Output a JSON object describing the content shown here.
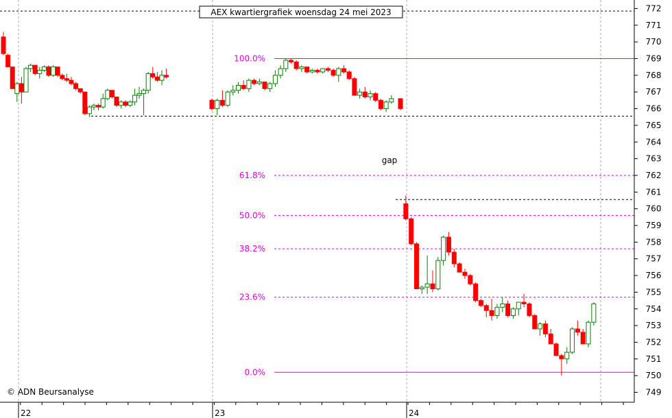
{
  "chart_data": {
    "type": "candlestick",
    "title": "AEX kwartiergrafiek woensdag 24 mei 2023",
    "copyright": "© ADN Beursanalyse",
    "annotation_gap": "gap",
    "y_range": [
      748.5,
      772.3
    ],
    "y_ticks": [
      749,
      750,
      751,
      752,
      753,
      754,
      755,
      756,
      757,
      758,
      759,
      760,
      761,
      762,
      763,
      764,
      765,
      766,
      767,
      768,
      769,
      770,
      771,
      772
    ],
    "x_labels": [
      "22",
      "23",
      "24"
    ],
    "colors": {
      "up": "#008000",
      "down": "#ff0000",
      "fib": "#e000e0",
      "grid": "#aaaaaa"
    },
    "fib_levels": [
      {
        "label": "100.0%",
        "value": 769.0,
        "style": "solid"
      },
      {
        "label": "61.8%",
        "value": 762.0,
        "style": "dashed"
      },
      {
        "label": "50.0%",
        "value": 759.6,
        "style": "dashed"
      },
      {
        "label": "38.2%",
        "value": 757.6,
        "style": "dashed"
      },
      {
        "label": "23.6%",
        "value": 754.7,
        "style": "dashed"
      },
      {
        "label": "0.0%",
        "value": 750.2,
        "style": "solid"
      }
    ],
    "ref_levels": [
      765.55,
      760.55,
      771.85
    ],
    "day1": [
      [
        770.3,
        770.6,
        769.2,
        769.3
      ],
      [
        769.2,
        769.3,
        768.5,
        768.5
      ],
      [
        768.5,
        768.5,
        767.2,
        767.2
      ],
      [
        766.9,
        767.6,
        766.4,
        767.5
      ],
      [
        767.5,
        767.9,
        766.3,
        767.0
      ],
      [
        767.0,
        768.5,
        767.0,
        768.4
      ],
      [
        768.4,
        768.7,
        768.2,
        768.6
      ],
      [
        768.6,
        768.6,
        768.0,
        768.1
      ],
      [
        768.1,
        768.5,
        767.8,
        768.3
      ],
      [
        768.3,
        768.6,
        768.2,
        768.5
      ],
      [
        768.5,
        768.6,
        767.9,
        768.0
      ],
      [
        768.0,
        768.6,
        767.9,
        768.5
      ],
      [
        768.5,
        768.5,
        767.9,
        768.0
      ],
      [
        768.0,
        768.1,
        767.7,
        767.8
      ],
      [
        767.8,
        768.1,
        767.6,
        767.7
      ],
      [
        767.7,
        767.9,
        767.4,
        767.5
      ],
      [
        767.5,
        767.6,
        767.1,
        767.2
      ],
      [
        767.2,
        767.2,
        766.9,
        767.0
      ],
      [
        767.0,
        767.0,
        765.6,
        765.7
      ],
      [
        765.7,
        766.2,
        765.5,
        766.1
      ],
      [
        766.1,
        766.3,
        765.9,
        766.2
      ],
      [
        766.2,
        766.3,
        765.9,
        766.1
      ],
      [
        766.1,
        766.9,
        766.0,
        766.6
      ],
      [
        766.6,
        767.2,
        766.5,
        767.1
      ],
      [
        767.1,
        767.1,
        766.6,
        766.7
      ],
      [
        766.7,
        766.7,
        766.1,
        766.2
      ],
      [
        766.2,
        766.5,
        766.0,
        766.4
      ],
      [
        766.4,
        766.5,
        766.1,
        766.2
      ],
      [
        766.2,
        766.5,
        766.1,
        766.4
      ],
      [
        766.4,
        767.2,
        766.2,
        766.8
      ],
      [
        766.8,
        767.3,
        766.6,
        766.9
      ],
      [
        766.9,
        767.2,
        765.6,
        767.1
      ],
      [
        767.1,
        768.2,
        766.9,
        768.1
      ],
      [
        768.1,
        768.5,
        767.8,
        767.9
      ],
      [
        767.9,
        768.2,
        767.6,
        767.7
      ],
      [
        767.7,
        768.3,
        767.4,
        768.0
      ],
      [
        768.0,
        768.4,
        767.8,
        767.9
      ]
    ],
    "day2": [
      [
        766.5,
        766.6,
        765.9,
        766.0
      ],
      [
        766.0,
        766.6,
        765.6,
        766.5
      ],
      [
        766.5,
        767.1,
        766.1,
        766.2
      ],
      [
        766.2,
        767.1,
        766.1,
        767.0
      ],
      [
        767.0,
        767.4,
        766.8,
        767.1
      ],
      [
        767.1,
        767.6,
        766.9,
        767.4
      ],
      [
        767.4,
        767.7,
        767.1,
        767.2
      ],
      [
        767.2,
        767.8,
        767.0,
        767.7
      ],
      [
        767.7,
        767.8,
        767.4,
        767.5
      ],
      [
        767.5,
        767.8,
        767.4,
        767.6
      ],
      [
        767.6,
        767.6,
        767.1,
        767.2
      ],
      [
        767.2,
        767.6,
        767.0,
        767.5
      ],
      [
        767.5,
        768.3,
        767.3,
        768.0
      ],
      [
        768.0,
        768.6,
        767.8,
        768.4
      ],
      [
        768.4,
        769.0,
        768.2,
        768.9
      ],
      [
        768.9,
        769.0,
        768.7,
        768.8
      ],
      [
        768.8,
        768.9,
        768.3,
        768.4
      ],
      [
        768.4,
        768.6,
        768.2,
        768.5
      ],
      [
        768.5,
        768.5,
        768.1,
        768.2
      ],
      [
        768.2,
        768.4,
        768.1,
        768.3
      ],
      [
        768.3,
        768.4,
        768.1,
        768.2
      ],
      [
        768.2,
        768.4,
        768.1,
        768.4
      ],
      [
        768.4,
        768.5,
        768.2,
        768.3
      ],
      [
        768.3,
        768.4,
        767.9,
        768.0
      ],
      [
        768.0,
        768.5,
        767.6,
        768.4
      ],
      [
        768.4,
        768.6,
        768.1,
        768.2
      ],
      [
        768.2,
        768.3,
        767.7,
        767.8
      ],
      [
        767.8,
        767.9,
        766.8,
        766.8
      ],
      [
        766.8,
        767.2,
        766.6,
        767.0
      ],
      [
        767.0,
        767.3,
        766.6,
        766.7
      ],
      [
        766.7,
        767.1,
        766.5,
        766.9
      ],
      [
        766.9,
        767.0,
        766.4,
        766.5
      ],
      [
        766.5,
        766.6,
        765.9,
        766.0
      ],
      [
        766.0,
        766.5,
        765.8,
        766.4
      ],
      [
        766.4,
        766.8,
        766.3,
        766.6
      ]
    ],
    "day3": [
      [
        766.6,
        766.6,
        765.9,
        766.0
      ],
      [
        760.3,
        760.8,
        759.3,
        759.4
      ],
      [
        759.4,
        759.5,
        757.8,
        757.9
      ],
      [
        757.9,
        758.0,
        755.2,
        755.2
      ],
      [
        755.2,
        755.4,
        754.9,
        755.3
      ],
      [
        755.3,
        757.2,
        754.9,
        755.5
      ],
      [
        755.5,
        756.3,
        755.0,
        755.2
      ],
      [
        755.2,
        757.1,
        755.1,
        756.9
      ],
      [
        756.9,
        758.4,
        756.6,
        758.3
      ],
      [
        758.3,
        758.6,
        757.2,
        757.4
      ],
      [
        757.4,
        757.6,
        756.5,
        756.7
      ],
      [
        756.7,
        756.8,
        756.2,
        756.2
      ],
      [
        756.2,
        756.4,
        755.8,
        756.0
      ],
      [
        756.0,
        756.1,
        755.4,
        755.5
      ],
      [
        755.5,
        755.6,
        754.4,
        754.5
      ],
      [
        754.5,
        754.6,
        754.1,
        754.2
      ],
      [
        754.2,
        754.3,
        753.5,
        753.9
      ],
      [
        753.9,
        754.6,
        753.3,
        753.6
      ],
      [
        753.6,
        754.3,
        753.4,
        754.1
      ],
      [
        754.1,
        754.7,
        753.8,
        754.3
      ],
      [
        754.3,
        754.5,
        753.5,
        753.6
      ],
      [
        753.6,
        754.1,
        753.4,
        754.0
      ],
      [
        754.0,
        754.3,
        753.6,
        754.4
      ],
      [
        754.4,
        754.9,
        754.1,
        754.3
      ],
      [
        754.3,
        754.4,
        753.5,
        753.6
      ],
      [
        753.6,
        753.7,
        752.8,
        752.8
      ],
      [
        752.8,
        753.2,
        752.4,
        753.1
      ],
      [
        753.1,
        753.3,
        752.3,
        752.5
      ],
      [
        752.5,
        752.8,
        751.9,
        751.9
      ],
      [
        751.9,
        752.0,
        751.2,
        751.2
      ],
      [
        751.2,
        751.3,
        750.0,
        751.0
      ],
      [
        751.0,
        751.7,
        750.7,
        751.4
      ],
      [
        751.4,
        752.9,
        751.3,
        752.8
      ],
      [
        752.8,
        753.3,
        752.4,
        752.6
      ],
      [
        752.6,
        752.8,
        751.9,
        751.9
      ],
      [
        751.9,
        753.3,
        751.7,
        753.2
      ],
      [
        753.2,
        754.4,
        753.0,
        754.3
      ]
    ]
  }
}
